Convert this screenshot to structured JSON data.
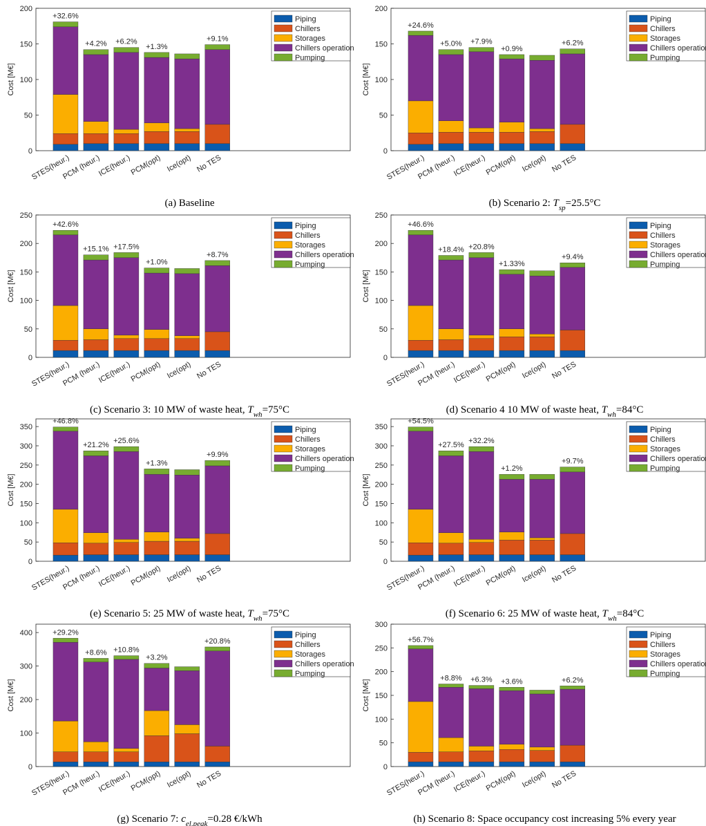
{
  "chart_data": [
    {
      "type": "bar",
      "stacked": true,
      "ylabel": "Cost [M€]",
      "ylim": [
        0,
        200
      ],
      "yticks": [
        0,
        50,
        100,
        150,
        200
      ],
      "legend": "upper right",
      "categories": [
        "STES(heur.)",
        "PCM (heur.)",
        "ICE(heur.)",
        "PCM(opt)",
        "Ice(opt)",
        "No TES"
      ],
      "series": [
        {
          "name": "Piping",
          "color": "#0b5cad",
          "values": [
            9,
            10,
            10,
            10,
            10,
            10
          ]
        },
        {
          "name": "Chillers",
          "color": "#d95319",
          "values": [
            15,
            14,
            14,
            17,
            17,
            27
          ]
        },
        {
          "name": "Storages",
          "color": "#fbae00",
          "values": [
            55,
            17,
            6,
            12,
            4,
            0
          ]
        },
        {
          "name": "Chillers operation",
          "color": "#7e2f8e",
          "values": [
            95,
            94,
            108,
            92,
            98,
            105
          ]
        },
        {
          "name": "Pumping",
          "color": "#77ac30",
          "values": [
            7,
            7,
            7,
            7,
            7,
            7
          ]
        }
      ],
      "bar_labels": [
        "+32.6%",
        "+4.2%",
        "+6.2%",
        "+1.3%",
        null,
        "+9.1%"
      ],
      "caption": [
        {
          "text": "(a) Baseline"
        }
      ]
    },
    {
      "type": "bar",
      "stacked": true,
      "ylabel": "Cost [M€]",
      "ylim": [
        0,
        200
      ],
      "yticks": [
        0,
        50,
        100,
        150,
        200
      ],
      "legend": "upper right",
      "categories": [
        "STES(heur.)",
        "PCM (heur.)",
        "ICE(heur.)",
        "PCM(opt)",
        "Ice(opt)",
        "No TES"
      ],
      "series": [
        {
          "name": "Piping",
          "color": "#0b5cad",
          "values": [
            9,
            10,
            10,
            10,
            10,
            10
          ]
        },
        {
          "name": "Chillers",
          "color": "#d95319",
          "values": [
            16,
            16,
            16,
            16,
            17,
            27
          ]
        },
        {
          "name": "Storages",
          "color": "#fbae00",
          "values": [
            45,
            16,
            6,
            14,
            4,
            0
          ]
        },
        {
          "name": "Chillers operation",
          "color": "#7e2f8e",
          "values": [
            92,
            93,
            107,
            89,
            96,
            99
          ]
        },
        {
          "name": "Pumping",
          "color": "#77ac30",
          "values": [
            6,
            7,
            6,
            6,
            7,
            7
          ]
        }
      ],
      "bar_labels": [
        "+24.6%",
        "+5.0%",
        "+7.9%",
        "+0.9%",
        null,
        "+6.2%"
      ],
      "caption": [
        {
          "text": "(b) Scenario 2: "
        },
        {
          "text": "T",
          "italic": true
        },
        {
          "text": "sp",
          "italic": true,
          "sub": true
        },
        {
          "text": "=25.5°C"
        }
      ]
    },
    {
      "type": "bar",
      "stacked": true,
      "ylabel": "Cost [M€]",
      "ylim": [
        0,
        250
      ],
      "yticks": [
        0,
        50,
        100,
        150,
        200,
        250
      ],
      "legend": "upper right",
      "categories": [
        "STES(heur.)",
        "PCM (heur.)",
        "ICE(heur.)",
        "PCM(opt)",
        "Ice(opt)",
        "No TES"
      ],
      "series": [
        {
          "name": "Piping",
          "color": "#0b5cad",
          "values": [
            12,
            12,
            12,
            12,
            12,
            12
          ]
        },
        {
          "name": "Chillers",
          "color": "#d95319",
          "values": [
            18,
            19,
            21,
            21,
            21,
            33
          ]
        },
        {
          "name": "Storages",
          "color": "#fbae00",
          "values": [
            61,
            19,
            6,
            16,
            5,
            0
          ]
        },
        {
          "name": "Chillers operation",
          "color": "#7e2f8e",
          "values": [
            124,
            121,
            136,
            99,
            109,
            116
          ]
        },
        {
          "name": "Pumping",
          "color": "#77ac30",
          "values": [
            8,
            9,
            9,
            9,
            9,
            9
          ]
        }
      ],
      "bar_labels": [
        "+42.6%",
        "+15.1%",
        "+17.5%",
        "+1.0%",
        null,
        "+8.7%"
      ],
      "caption": [
        {
          "text": "(c) Scenario 3: 10 MW of waste heat, "
        },
        {
          "text": "T",
          "italic": true
        },
        {
          "text": "wh",
          "italic": true,
          "sub": true
        },
        {
          "text": "=75°C"
        }
      ]
    },
    {
      "type": "bar",
      "stacked": true,
      "ylabel": "Cost [M€]",
      "ylim": [
        0,
        250
      ],
      "yticks": [
        0,
        50,
        100,
        150,
        200,
        250
      ],
      "legend": "upper right",
      "categories": [
        "STES(heur.)",
        "PCM (heur.)",
        "ICE(heur.)",
        "PCM(opt)",
        "Ice(opt)",
        "No TES"
      ],
      "series": [
        {
          "name": "Piping",
          "color": "#0b5cad",
          "values": [
            12,
            12,
            12,
            12,
            12,
            12
          ]
        },
        {
          "name": "Chillers",
          "color": "#d95319",
          "values": [
            18,
            19,
            21,
            24,
            24,
            36
          ]
        },
        {
          "name": "Storages",
          "color": "#fbae00",
          "values": [
            61,
            19,
            6,
            14,
            5,
            0
          ]
        },
        {
          "name": "Chillers operation",
          "color": "#7e2f8e",
          "values": [
            124,
            121,
            136,
            96,
            102,
            110
          ]
        },
        {
          "name": "Pumping",
          "color": "#77ac30",
          "values": [
            8,
            8,
            9,
            8,
            9,
            8
          ]
        }
      ],
      "bar_labels": [
        "+46.6%",
        "+18.4%",
        "+20.8%",
        "+1.33%",
        null,
        "+9.4%"
      ],
      "caption": [
        {
          "text": "(d) Scenario 4 10 MW of waste heat, "
        },
        {
          "text": "T",
          "italic": true
        },
        {
          "text": "wh",
          "italic": true,
          "sub": true
        },
        {
          "text": "=84°C"
        }
      ]
    },
    {
      "type": "bar",
      "stacked": true,
      "ylabel": "Cost [M€]",
      "ylim": [
        0,
        370
      ],
      "yticks": [
        0,
        50,
        100,
        150,
        200,
        250,
        300,
        350
      ],
      "legend": "upper right",
      "categories": [
        "STES(heur.)",
        "PCM (heur.)",
        "ICE(heur.)",
        "PCM(opt)",
        "Ice(opt)",
        "No TES"
      ],
      "series": [
        {
          "name": "Piping",
          "color": "#0b5cad",
          "values": [
            16,
            17,
            17,
            17,
            17,
            17
          ]
        },
        {
          "name": "Chillers",
          "color": "#d95319",
          "values": [
            32,
            30,
            32,
            35,
            35,
            55
          ]
        },
        {
          "name": "Storages",
          "color": "#fbae00",
          "values": [
            87,
            27,
            8,
            24,
            8,
            0
          ]
        },
        {
          "name": "Chillers operation",
          "color": "#7e2f8e",
          "values": [
            203,
            200,
            228,
            150,
            164,
            176
          ]
        },
        {
          "name": "Pumping",
          "color": "#77ac30",
          "values": [
            11,
            13,
            13,
            14,
            14,
            14
          ]
        }
      ],
      "bar_labels": [
        "+46.8%",
        "+21.2%",
        "+25.6%",
        "+1.3%",
        null,
        "+9.9%"
      ],
      "caption": [
        {
          "text": "(e) Scenario 5: 25 MW of waste heat, "
        },
        {
          "text": "T",
          "italic": true
        },
        {
          "text": "wh",
          "italic": true,
          "sub": true
        },
        {
          "text": "=75°C"
        }
      ]
    },
    {
      "type": "bar",
      "stacked": true,
      "ylabel": "Cost [M€]",
      "ylim": [
        0,
        370
      ],
      "yticks": [
        0,
        50,
        100,
        150,
        200,
        250,
        300,
        350
      ],
      "legend": "upper right",
      "categories": [
        "STES(heur.)",
        "PCM (heur.)",
        "ICE(heur.)",
        "PCM(opt)",
        "Ice(opt)",
        "No TES"
      ],
      "series": [
        {
          "name": "Piping",
          "color": "#0b5cad",
          "values": [
            16,
            17,
            17,
            17,
            17,
            17
          ]
        },
        {
          "name": "Chillers",
          "color": "#d95319",
          "values": [
            32,
            30,
            32,
            38,
            38,
            55
          ]
        },
        {
          "name": "Storages",
          "color": "#fbae00",
          "values": [
            87,
            27,
            8,
            21,
            6,
            0
          ]
        },
        {
          "name": "Chillers operation",
          "color": "#7e2f8e",
          "values": [
            203,
            200,
            228,
            137,
            152,
            160
          ]
        },
        {
          "name": "Pumping",
          "color": "#77ac30",
          "values": [
            11,
            13,
            13,
            13,
            13,
            13
          ]
        }
      ],
      "bar_labels": [
        "+54.5%",
        "+27.5%",
        "+32.2%",
        "+1.2%",
        null,
        "+9.7%"
      ],
      "caption": [
        {
          "text": "(f) Scenario 6: 25 MW of waste heat, "
        },
        {
          "text": "T",
          "italic": true
        },
        {
          "text": "wh",
          "italic": true,
          "sub": true
        },
        {
          "text": "=84°C"
        }
      ]
    },
    {
      "type": "bar",
      "stacked": true,
      "ylabel": "Cost [M€]",
      "ylim": [
        0,
        425
      ],
      "yticks": [
        0,
        100,
        200,
        300,
        400
      ],
      "legend": "upper right",
      "categories": [
        "STES(heur.)",
        "PCM (heur.)",
        "ICE(heur.)",
        "PCM(opt)",
        "Ice(opt)",
        "No TES"
      ],
      "series": [
        {
          "name": "Piping",
          "color": "#0b5cad",
          "values": [
            14,
            14,
            14,
            14,
            14,
            14
          ]
        },
        {
          "name": "Chillers",
          "color": "#d95319",
          "values": [
            30,
            30,
            30,
            78,
            84,
            47
          ]
        },
        {
          "name": "Storages",
          "color": "#fbae00",
          "values": [
            92,
            30,
            10,
            75,
            27,
            0
          ]
        },
        {
          "name": "Chillers operation",
          "color": "#7e2f8e",
          "values": [
            235,
            238,
            266,
            127,
            161,
            284
          ]
        },
        {
          "name": "Pumping",
          "color": "#77ac30",
          "values": [
            12,
            11,
            11,
            14,
            12,
            12
          ]
        }
      ],
      "bar_labels": [
        "+29.2%",
        "+8.6%",
        "+10.8%",
        "+3.2%",
        null,
        "+20.8%"
      ],
      "caption": [
        {
          "text": "(g) Scenario 7: "
        },
        {
          "text": "c",
          "italic": true
        },
        {
          "text": "el,peak",
          "italic": true,
          "sub": true
        },
        {
          "text": "=0.28 €/kWh"
        }
      ]
    },
    {
      "type": "bar",
      "stacked": true,
      "ylabel": "Cost [M€]",
      "ylim": [
        0,
        300
      ],
      "yticks": [
        0,
        50,
        100,
        150,
        200,
        250,
        300
      ],
      "legend": "upper right",
      "categories": [
        "STES(heur.)",
        "PCM (heur.)",
        "ICE(heur.)",
        "PCM(opt)",
        "Ice(opt)",
        "No TES"
      ],
      "series": [
        {
          "name": "Piping",
          "color": "#0b5cad",
          "values": [
            10,
            10,
            10,
            10,
            10,
            10
          ]
        },
        {
          "name": "Chillers",
          "color": "#d95319",
          "values": [
            20,
            21,
            23,
            26,
            24,
            35
          ]
        },
        {
          "name": "Storages",
          "color": "#fbae00",
          "values": [
            107,
            30,
            10,
            11,
            7,
            0
          ]
        },
        {
          "name": "Chillers operation",
          "color": "#7e2f8e",
          "values": [
            111,
            106,
            121,
            113,
            112,
            118
          ]
        },
        {
          "name": "Pumping",
          "color": "#77ac30",
          "values": [
            7,
            7,
            7,
            7,
            8,
            7
          ]
        }
      ],
      "bar_labels": [
        "+56.7%",
        "+8.8%",
        "+6.3%",
        "+3.6%",
        null,
        "+6.2%"
      ],
      "caption": [
        {
          "text": "(h) Scenario 8: Space occupancy cost increasing 5% every year"
        }
      ]
    }
  ]
}
